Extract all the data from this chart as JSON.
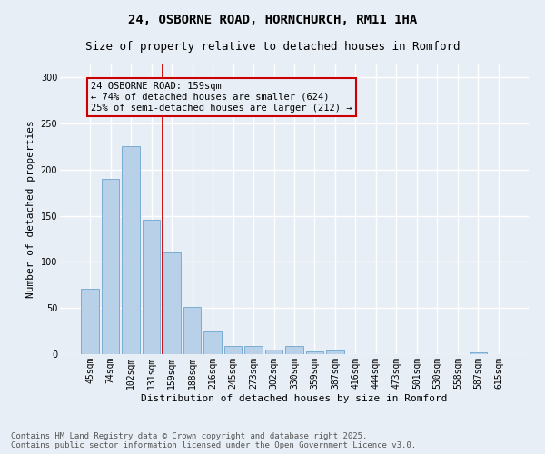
{
  "title": "24, OSBORNE ROAD, HORNCHURCH, RM11 1HA",
  "subtitle": "Size of property relative to detached houses in Romford",
  "xlabel": "Distribution of detached houses by size in Romford",
  "ylabel": "Number of detached properties",
  "categories": [
    "45sqm",
    "74sqm",
    "102sqm",
    "131sqm",
    "159sqm",
    "188sqm",
    "216sqm",
    "245sqm",
    "273sqm",
    "302sqm",
    "330sqm",
    "359sqm",
    "387sqm",
    "416sqm",
    "444sqm",
    "473sqm",
    "501sqm",
    "530sqm",
    "558sqm",
    "587sqm",
    "615sqm"
  ],
  "values": [
    71,
    190,
    225,
    146,
    110,
    51,
    25,
    9,
    9,
    5,
    9,
    3,
    4,
    0,
    0,
    0,
    0,
    0,
    0,
    2,
    0
  ],
  "bar_color": "#b8d0e8",
  "bar_edge_color": "#7aadd4",
  "background_color": "#e8eef5",
  "grid_color": "#ffffff",
  "vline_index": 4,
  "vline_color": "#cc0000",
  "annotation_text": "24 OSBORNE ROAD: 159sqm\n← 74% of detached houses are smaller (624)\n25% of semi-detached houses are larger (212) →",
  "annotation_box_color": "#cc0000",
  "ylim": [
    0,
    315
  ],
  "yticks": [
    0,
    50,
    100,
    150,
    200,
    250,
    300
  ],
  "footer_line1": "Contains HM Land Registry data © Crown copyright and database right 2025.",
  "footer_line2": "Contains public sector information licensed under the Open Government Licence v3.0.",
  "title_fontsize": 10,
  "subtitle_fontsize": 9,
  "axis_label_fontsize": 8,
  "tick_fontsize": 7,
  "annotation_fontsize": 7.5,
  "footer_fontsize": 6.5
}
